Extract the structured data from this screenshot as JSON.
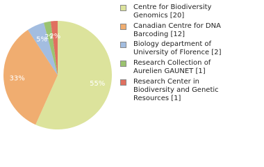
{
  "chart_data": {
    "type": "pie",
    "series": [
      {
        "name": "Centre for Biodiversity Genomics [20]",
        "color": "#dce39c"
      },
      {
        "name": "Canadian Centre for DNA Barcoding [12]",
        "color": "#f0ad70"
      },
      {
        "name": "Biology department of University of Florence [2]",
        "color": "#a3bde0"
      },
      {
        "name": "Research Collection of Aurelien GAUNET [1]",
        "color": "#9bc370"
      },
      {
        "name": "Research Center in Biodiversity and Genetic Resources [1]",
        "color": "#e07060"
      }
    ],
    "values": [
      55,
      33,
      5,
      2,
      2
    ],
    "value_labels": [
      "55%",
      "33%",
      "5%",
      "2%",
      "2%"
    ]
  }
}
